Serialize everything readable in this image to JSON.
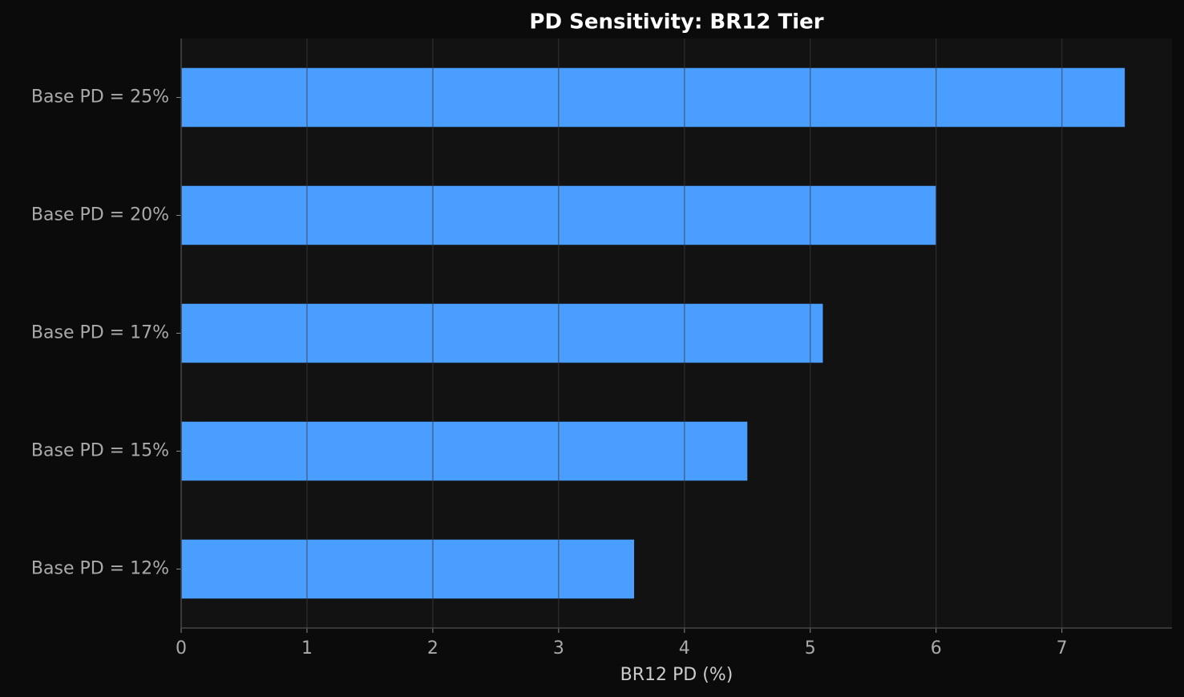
{
  "chart_data": {
    "type": "barh",
    "title": "PD Sensitivity: BR12 Tier",
    "xlabel": "BR12 PD (%)",
    "categories": [
      "Base PD = 25%",
      "Base PD = 20%",
      "Base PD = 17%",
      "Base PD = 15%",
      "Base PD = 12%"
    ],
    "values": [
      7.5,
      6.0,
      5.1,
      4.5,
      3.6
    ],
    "color": "#4a9eff",
    "xlim": [
      0,
      7.875
    ],
    "xticks": [
      0,
      1,
      2,
      3,
      4,
      5,
      6,
      7
    ],
    "grid": true
  }
}
